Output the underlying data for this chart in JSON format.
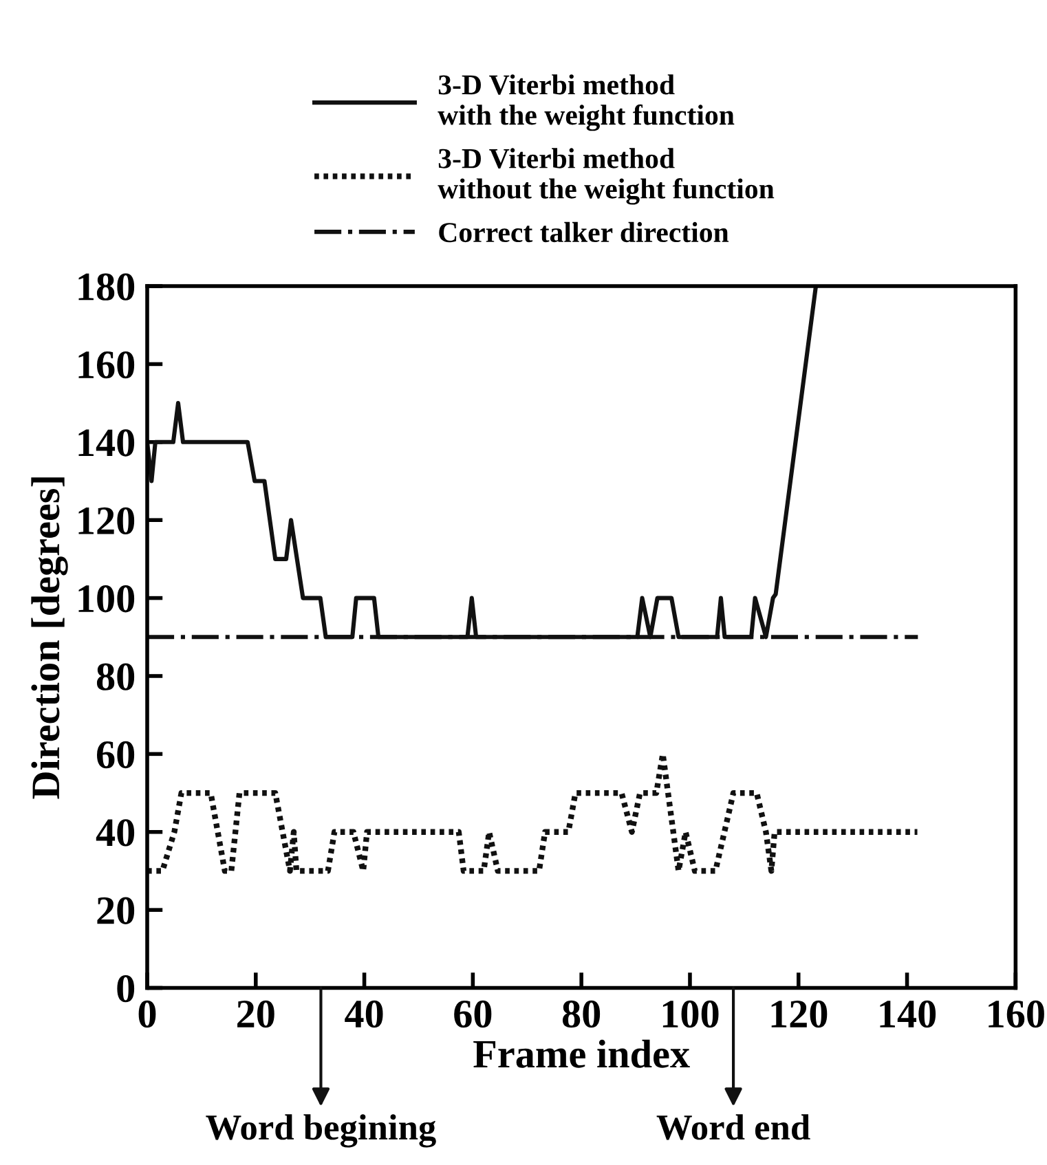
{
  "chart_data": {
    "type": "line",
    "xlabel": "Frame index",
    "ylabel": "Direction [degrees]",
    "xlim": [
      0,
      160
    ],
    "xticks": [
      0,
      20,
      40,
      60,
      80,
      100,
      120,
      140,
      160
    ],
    "ylim": [
      0,
      180
    ],
    "yticks": [
      0,
      20,
      40,
      60,
      80,
      100,
      120,
      140,
      160,
      180
    ],
    "grid": false,
    "legend": "top",
    "marker": "none",
    "series": [
      {
        "name": "3-D Viterbi method\nwith the weight function",
        "color": "#111111",
        "line_style": "solid",
        "x": [
          0,
          0.8,
          1.5,
          4.8,
          5.7,
          6.6,
          18.5,
          19.8,
          21.6,
          23.6,
          25.6,
          26.5,
          28.7,
          31.9,
          32.9,
          37.8,
          38.5,
          41.8,
          42.6,
          59,
          59.8,
          60.6,
          90.3,
          91.2,
          92.7,
          94,
          96.6,
          97.9,
          105,
          105.7,
          106.4,
          111.3,
          112,
          114,
          115.3,
          115.8,
          123.2
        ],
        "values": [
          140,
          130,
          140,
          140,
          150,
          140,
          140,
          130,
          130,
          110,
          110,
          120,
          100,
          100,
          90,
          90,
          100,
          100,
          90,
          90,
          100,
          90,
          90,
          100,
          90,
          100,
          100,
          90,
          90,
          100,
          90,
          90,
          100,
          90,
          100,
          101,
          180
        ]
      },
      {
        "name": "3-D Viterbi method\nwithout the weight function",
        "color": "#111111",
        "line_style": "dotted",
        "x": [
          0,
          2.8,
          5,
          6.3,
          11.7,
          14.3,
          15.5,
          17,
          23.6,
          26.3,
          27,
          27.5,
          28.2,
          33.3,
          34.5,
          38,
          39.8,
          40.5,
          57.4,
          58.3,
          62,
          63,
          64.6,
          72.2,
          73.3,
          77.6,
          78.9,
          87.4,
          89.3,
          90.8,
          93.8,
          95,
          97.9,
          99.2,
          100.9,
          104.7,
          108,
          112.3,
          114,
          115,
          115.6,
          141.9
        ],
        "values": [
          30,
          30,
          40,
          50,
          50,
          30,
          30,
          50,
          50,
          30,
          40,
          30,
          30,
          30,
          40,
          40,
          30,
          40,
          40,
          30,
          30,
          40,
          30,
          30,
          40,
          40,
          50,
          50,
          40,
          50,
          50,
          60,
          30,
          40,
          30,
          30,
          50,
          50,
          40,
          30,
          40,
          40
        ]
      },
      {
        "name": "Correct talker direction",
        "color": "#111111",
        "line_style": "dashdot",
        "x": [
          0,
          142
        ],
        "values": [
          90,
          90
        ]
      }
    ],
    "annotations": [
      "Word begining",
      "Word end"
    ]
  }
}
